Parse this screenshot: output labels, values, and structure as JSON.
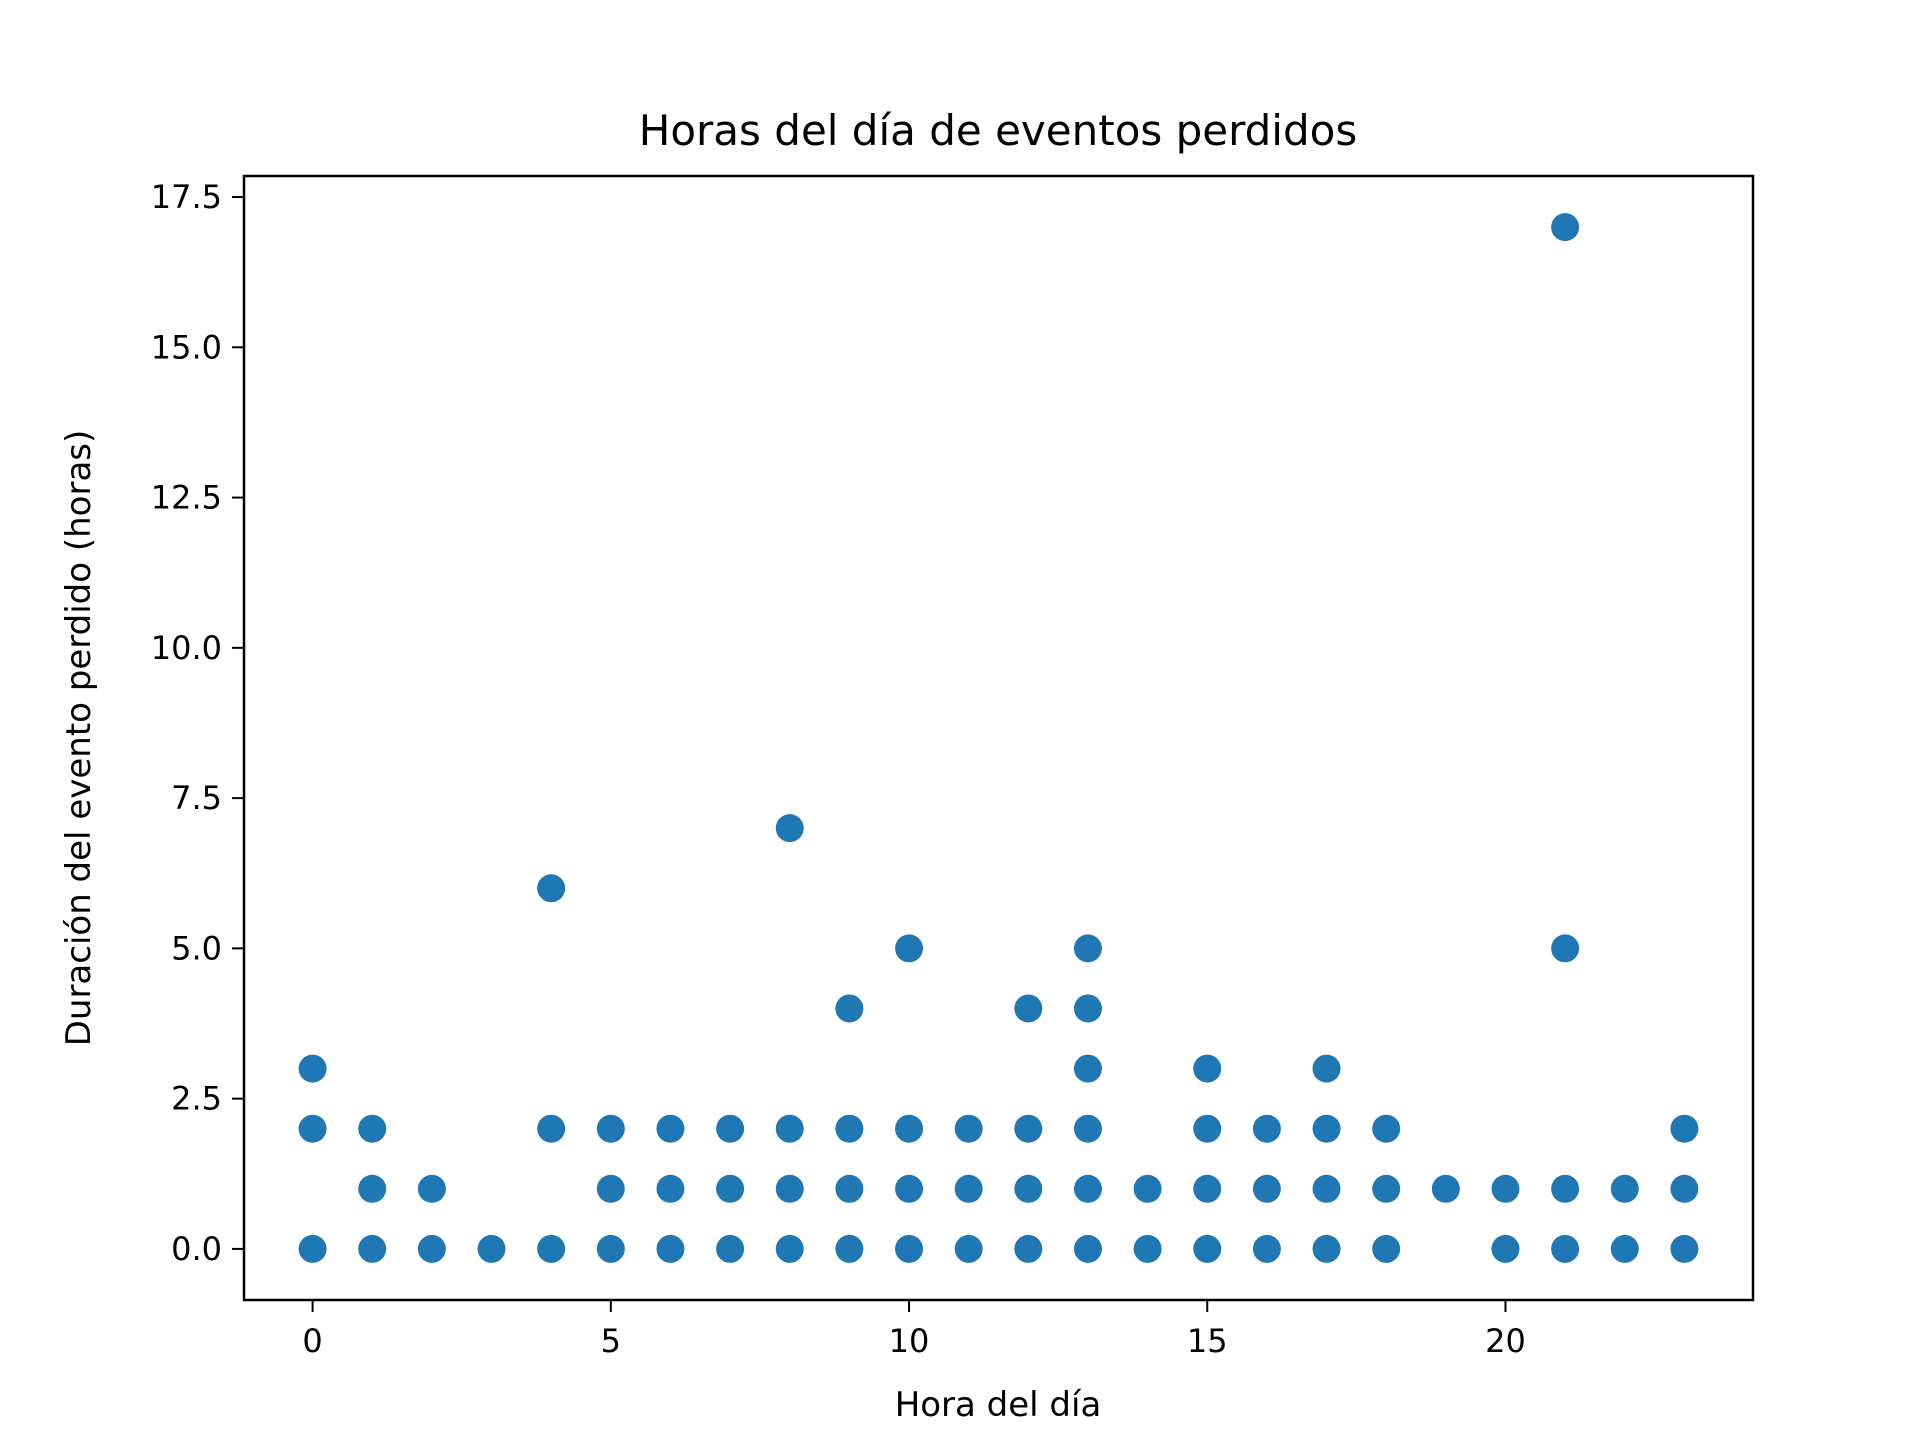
{
  "chart_data": {
    "type": "scatter",
    "title": "Horas del día de eventos perdidos",
    "xlabel": "Hora del día",
    "ylabel": "Duración del evento perdido (horas)",
    "xlim": [
      -1.15,
      24.15
    ],
    "ylim": [
      -0.85,
      17.85
    ],
    "xticks": [
      0,
      5,
      10,
      15,
      20
    ],
    "xtick_labels": [
      "0",
      "5",
      "10",
      "15",
      "20"
    ],
    "yticks": [
      0,
      2.5,
      5,
      7.5,
      10,
      12.5,
      15,
      17.5
    ],
    "ytick_labels": [
      "0.0",
      "2.5",
      "5.0",
      "7.5",
      "10.0",
      "12.5",
      "15.0",
      "17.5"
    ],
    "grid": false,
    "marker_color": "#1f77b4",
    "points": [
      {
        "x": 0,
        "y": 0
      },
      {
        "x": 0,
        "y": 2
      },
      {
        "x": 0,
        "y": 3
      },
      {
        "x": 1,
        "y": 0
      },
      {
        "x": 1,
        "y": 1
      },
      {
        "x": 1,
        "y": 2
      },
      {
        "x": 2,
        "y": 0
      },
      {
        "x": 2,
        "y": 1
      },
      {
        "x": 3,
        "y": 0
      },
      {
        "x": 4,
        "y": 0
      },
      {
        "x": 4,
        "y": 2
      },
      {
        "x": 4,
        "y": 6
      },
      {
        "x": 5,
        "y": 0
      },
      {
        "x": 5,
        "y": 1
      },
      {
        "x": 5,
        "y": 2
      },
      {
        "x": 6,
        "y": 0
      },
      {
        "x": 6,
        "y": 1
      },
      {
        "x": 6,
        "y": 2
      },
      {
        "x": 7,
        "y": 0
      },
      {
        "x": 7,
        "y": 1
      },
      {
        "x": 7,
        "y": 2
      },
      {
        "x": 8,
        "y": 0
      },
      {
        "x": 8,
        "y": 1
      },
      {
        "x": 8,
        "y": 2
      },
      {
        "x": 8,
        "y": 7
      },
      {
        "x": 9,
        "y": 0
      },
      {
        "x": 9,
        "y": 1
      },
      {
        "x": 9,
        "y": 2
      },
      {
        "x": 9,
        "y": 4
      },
      {
        "x": 10,
        "y": 0
      },
      {
        "x": 10,
        "y": 1
      },
      {
        "x": 10,
        "y": 2
      },
      {
        "x": 10,
        "y": 5
      },
      {
        "x": 11,
        "y": 0
      },
      {
        "x": 11,
        "y": 1
      },
      {
        "x": 11,
        "y": 2
      },
      {
        "x": 12,
        "y": 0
      },
      {
        "x": 12,
        "y": 1
      },
      {
        "x": 12,
        "y": 2
      },
      {
        "x": 12,
        "y": 4
      },
      {
        "x": 13,
        "y": 0
      },
      {
        "x": 13,
        "y": 1
      },
      {
        "x": 13,
        "y": 2
      },
      {
        "x": 13,
        "y": 3
      },
      {
        "x": 13,
        "y": 4
      },
      {
        "x": 13,
        "y": 5
      },
      {
        "x": 14,
        "y": 0
      },
      {
        "x": 14,
        "y": 1
      },
      {
        "x": 15,
        "y": 0
      },
      {
        "x": 15,
        "y": 1
      },
      {
        "x": 15,
        "y": 2
      },
      {
        "x": 15,
        "y": 3
      },
      {
        "x": 16,
        "y": 0
      },
      {
        "x": 16,
        "y": 1
      },
      {
        "x": 16,
        "y": 2
      },
      {
        "x": 17,
        "y": 0
      },
      {
        "x": 17,
        "y": 1
      },
      {
        "x": 17,
        "y": 2
      },
      {
        "x": 17,
        "y": 3
      },
      {
        "x": 18,
        "y": 0
      },
      {
        "x": 18,
        "y": 1
      },
      {
        "x": 18,
        "y": 2
      },
      {
        "x": 19,
        "y": 1
      },
      {
        "x": 20,
        "y": 0
      },
      {
        "x": 20,
        "y": 1
      },
      {
        "x": 21,
        "y": 0
      },
      {
        "x": 21,
        "y": 1
      },
      {
        "x": 21,
        "y": 5
      },
      {
        "x": 21,
        "y": 17
      },
      {
        "x": 22,
        "y": 0
      },
      {
        "x": 22,
        "y": 1
      },
      {
        "x": 23,
        "y": 0
      },
      {
        "x": 23,
        "y": 1
      },
      {
        "x": 23,
        "y": 2
      }
    ]
  }
}
